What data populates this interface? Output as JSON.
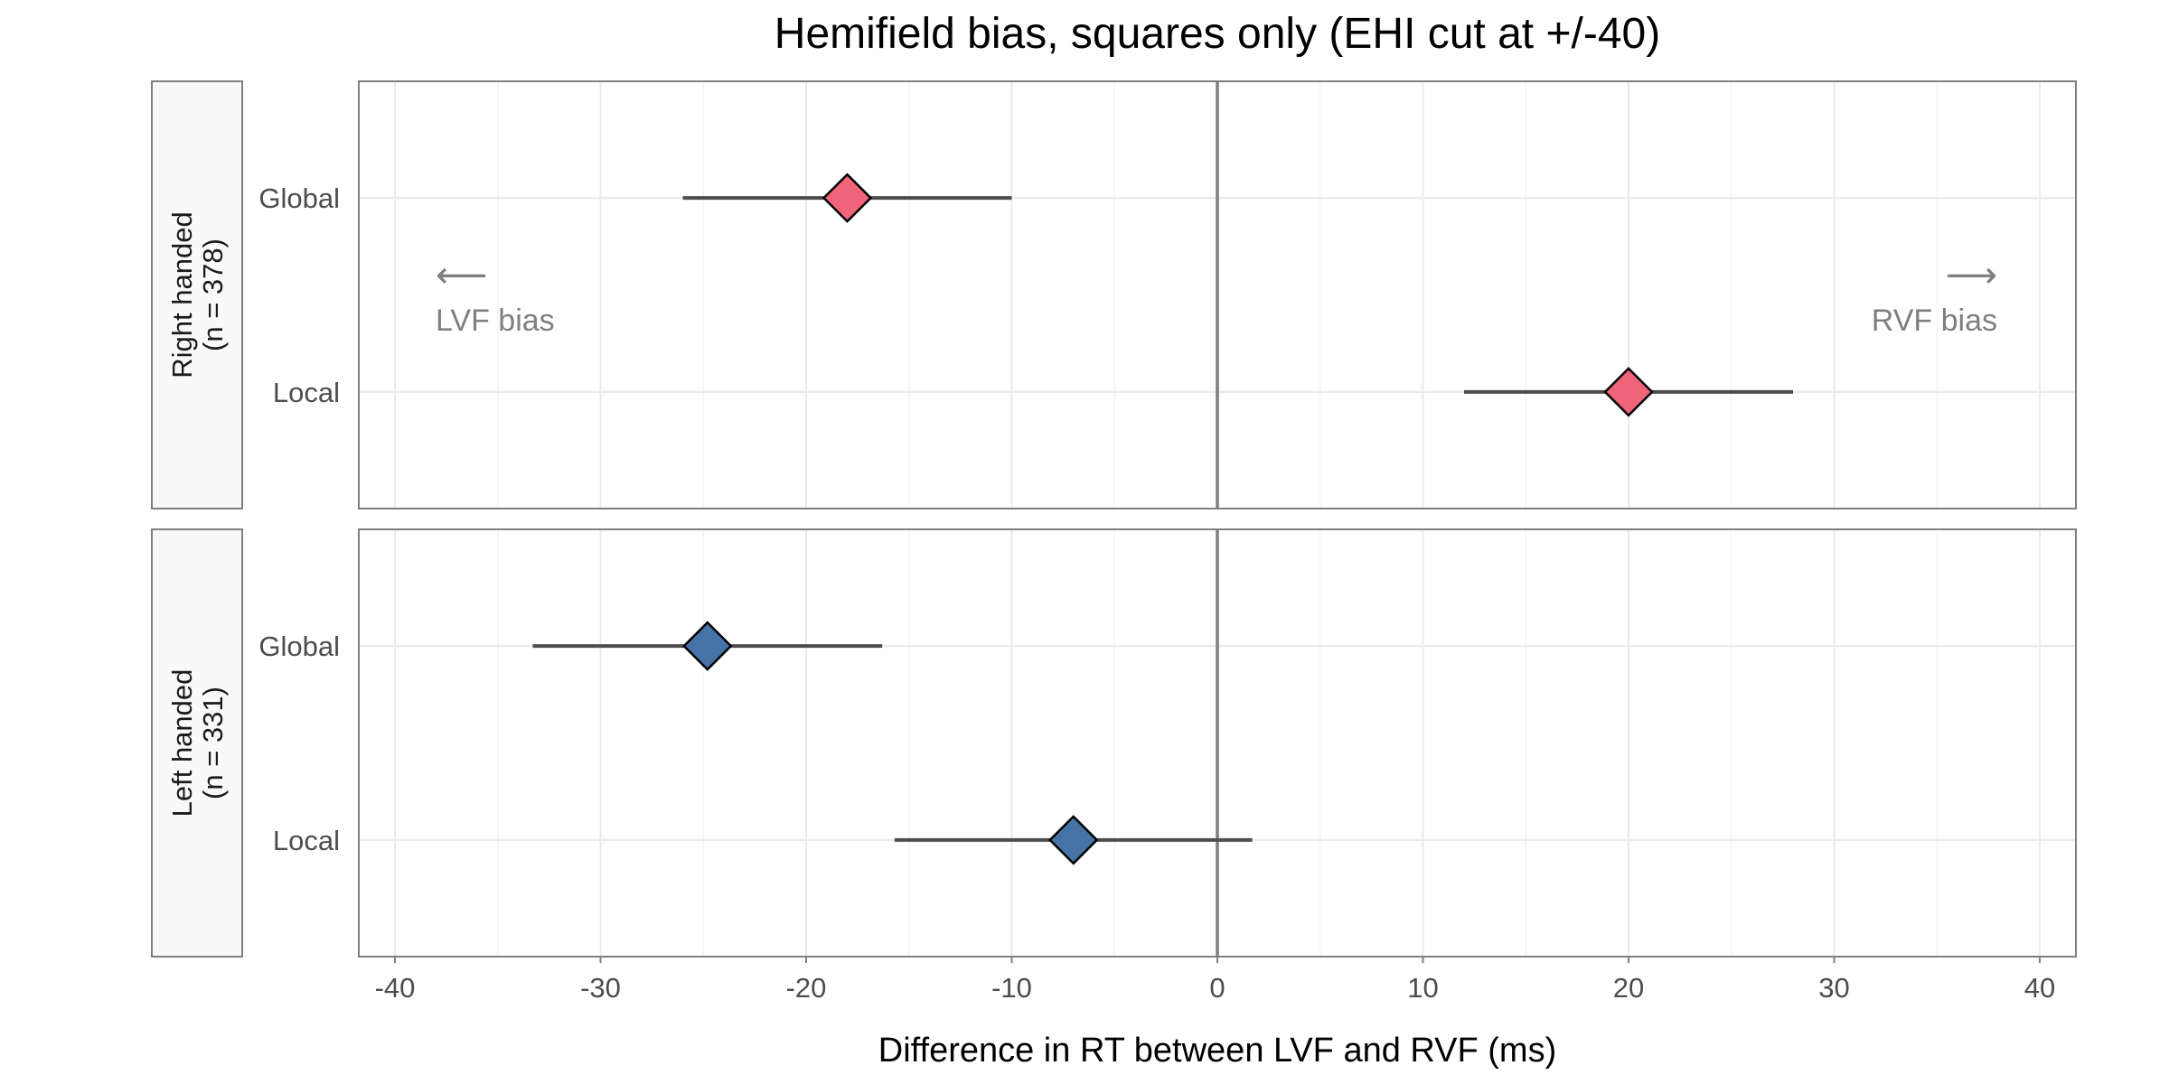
{
  "chart_data": {
    "type": "forest",
    "title": "Hemifield bias, squares only (EHI cut at +/-40)",
    "xlabel": "Difference in RT between LVF and RVF (ms)",
    "xlim": [
      -42,
      42
    ],
    "xticks": [
      -40,
      -30,
      -20,
      -10,
      0,
      10,
      20,
      30,
      40
    ],
    "categories": [
      "Global",
      "Local"
    ],
    "grid": true,
    "reference_line": 0,
    "panels": [
      {
        "strip_label": [
          "Right handed",
          "(n = 378)"
        ],
        "color": "#ef6478",
        "points": [
          {
            "category": "Global",
            "estimate": -18,
            "lower": -26,
            "upper": -10
          },
          {
            "category": "Local",
            "estimate": 20,
            "lower": 12,
            "upper": 28
          }
        ],
        "annotations": [
          {
            "arrow": "⟵",
            "text": "LVF bias",
            "side": "left"
          },
          {
            "arrow": "⟶",
            "text": "RVF bias",
            "side": "right"
          }
        ]
      },
      {
        "strip_label": [
          "Left handed",
          "(n = 331)"
        ],
        "color": "#4673a8",
        "points": [
          {
            "category": "Global",
            "estimate": -24.8,
            "lower": -33.3,
            "upper": -16.3
          },
          {
            "category": "Local",
            "estimate": -7,
            "lower": -15.7,
            "upper": 1.7
          }
        ],
        "annotations": []
      }
    ]
  }
}
